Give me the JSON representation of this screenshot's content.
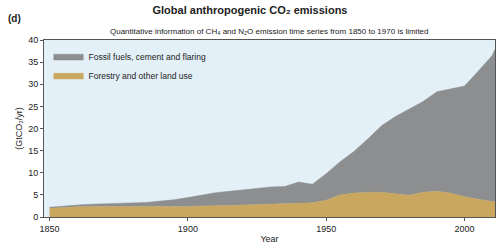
{
  "chart_data": {
    "type": "area",
    "panel_label": "(d)",
    "title": "Global anthropogenic CO₂ emissions",
    "subtitle": "Quantitative information of CH₄ and N₂O emission time series from 1850 to 1970 is limited",
    "x_label": "Year",
    "y_label": "(GtCO₂/yr)",
    "stacked": true,
    "grid": false,
    "legend": "top left",
    "x": [
      1850,
      1855,
      1860,
      1865,
      1870,
      1875,
      1880,
      1885,
      1890,
      1895,
      1900,
      1905,
      1910,
      1915,
      1920,
      1925,
      1930,
      1935,
      1940,
      1945,
      1950,
      1955,
      1960,
      1965,
      1970,
      1975,
      1980,
      1985,
      1990,
      1995,
      2000,
      2005,
      2010,
      2011
    ],
    "series": [
      {
        "name": "Forestry and other land use",
        "color": "#c9a75e",
        "values": [
          2.0,
          2.2,
          2.3,
          2.4,
          2.4,
          2.3,
          2.3,
          2.3,
          2.3,
          2.4,
          2.4,
          2.5,
          2.5,
          2.6,
          2.7,
          2.8,
          2.9,
          3.0,
          3.1,
          3.2,
          3.8,
          5.0,
          5.4,
          5.6,
          5.6,
          5.2,
          4.9,
          5.6,
          5.8,
          5.4,
          4.6,
          4.0,
          3.5,
          3.4
        ]
      },
      {
        "name": "Fossil fuels, cement and flaring",
        "color": "#8c8e90",
        "values": [
          0.2,
          0.3,
          0.4,
          0.5,
          0.6,
          0.7,
          0.9,
          1.0,
          1.3,
          1.5,
          2.0,
          2.5,
          3.0,
          3.2,
          3.4,
          3.6,
          3.9,
          3.9,
          4.8,
          4.2,
          6.0,
          7.5,
          9.4,
          12.0,
          15.0,
          17.5,
          19.5,
          20.5,
          22.5,
          23.5,
          25.0,
          29.0,
          33.0,
          34.5
        ]
      }
    ],
    "xlim": [
      1848,
      2011
    ],
    "xticks": [
      1850,
      1900,
      1950,
      2000
    ],
    "ylim": [
      0,
      40
    ],
    "yticks": [
      0,
      5,
      10,
      15,
      20,
      25,
      30,
      35,
      40
    ]
  }
}
